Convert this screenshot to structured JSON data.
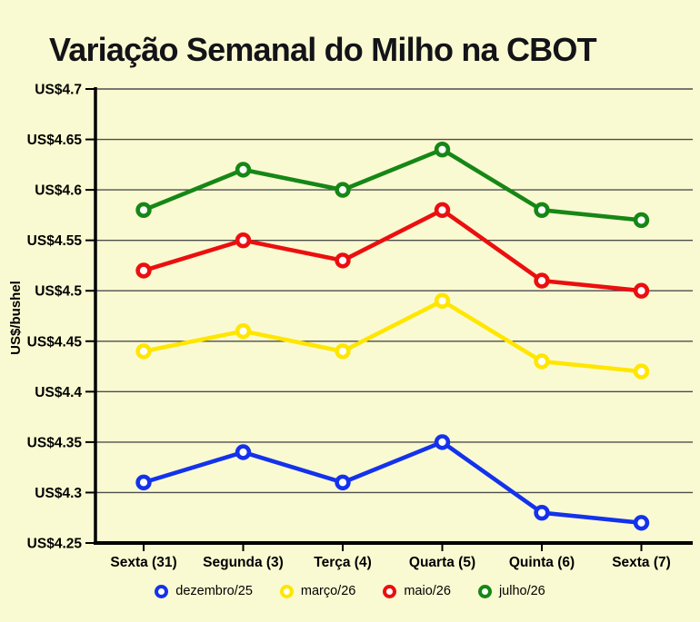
{
  "title": "Variação Semanal do Milho na CBOT",
  "chart_data": {
    "type": "line",
    "title": "Variação Semanal do Milho na CBOT",
    "xlabel": "",
    "ylabel": "US$/bushel",
    "categories": [
      "Sexta (31)",
      "Segunda (3)",
      "Terça (4)",
      "Quarta (5)",
      "Quinta (6)",
      "Sexta (7)"
    ],
    "series": [
      {
        "name": "dezembro/25",
        "color": "#1432eb",
        "values": [
          4.31,
          4.34,
          4.31,
          4.35,
          4.28,
          4.27
        ]
      },
      {
        "name": "março/26",
        "color": "#ffe600",
        "values": [
          4.44,
          4.46,
          4.44,
          4.49,
          4.43,
          4.42
        ]
      },
      {
        "name": "maio/26",
        "color": "#eb0f0f",
        "values": [
          4.52,
          4.55,
          4.53,
          4.58,
          4.51,
          4.5
        ]
      },
      {
        "name": "julho/26",
        "color": "#168716",
        "values": [
          4.58,
          4.62,
          4.6,
          4.64,
          4.58,
          4.57
        ]
      }
    ],
    "ylim": [
      4.25,
      4.7
    ],
    "ytick_step": 0.05,
    "y_ticks": [
      {
        "value": 4.25,
        "label": "US$4.25"
      },
      {
        "value": 4.3,
        "label": "US$4.3"
      },
      {
        "value": 4.35,
        "label": "US$4.35"
      },
      {
        "value": 4.4,
        "label": "US$4.4"
      },
      {
        "value": 4.45,
        "label": "US$4.45"
      },
      {
        "value": 4.5,
        "label": "US$4.5"
      },
      {
        "value": 4.55,
        "label": "US$4.55"
      },
      {
        "value": 4.6,
        "label": "US$4.6"
      },
      {
        "value": 4.65,
        "label": "US$4.65"
      },
      {
        "value": 4.7,
        "label": "US$4.7"
      }
    ],
    "grid": true,
    "legend_position": "bottom",
    "marker": "ring"
  },
  "style": {
    "background": "#fafad2",
    "grid_color": "#4d4d4d",
    "axis_color": "#000000",
    "label_color": "#000000",
    "title_color": "#131318"
  }
}
